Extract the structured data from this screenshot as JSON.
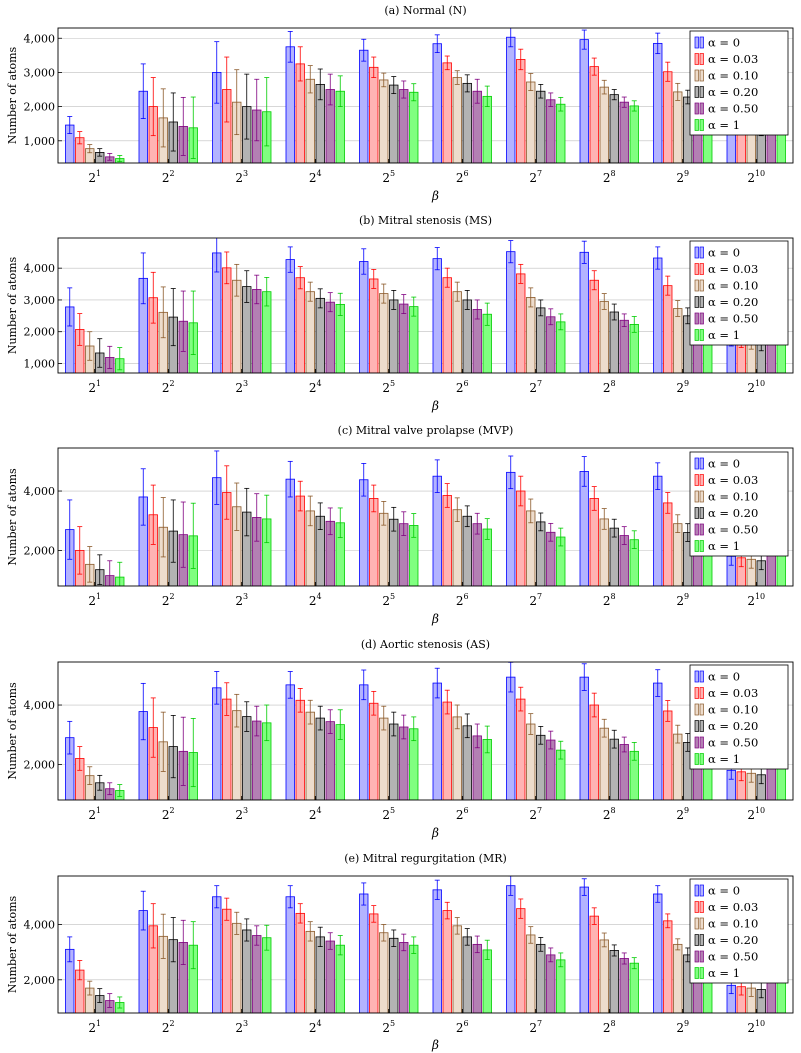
{
  "chart_data": [
    {
      "type": "bar",
      "title": "(a) Normal (N)",
      "xlabel": "β",
      "ylabel": "Number of atoms",
      "categories": [
        "2^1",
        "2^2",
        "2^3",
        "2^4",
        "2^5",
        "2^6",
        "2^7",
        "2^8",
        "2^9",
        "2^10"
      ],
      "ylim": [
        350,
        4300
      ],
      "yticks": [
        1000,
        2000,
        3000,
        4000
      ],
      "ytick_labels": [
        "1,000",
        "2,000",
        "3,000",
        "4,000"
      ],
      "grid": "horizontal",
      "legend_position": "top-right",
      "series": [
        {
          "name": "α = 0",
          "values": [
            1460,
            2450,
            3000,
            3750,
            3650,
            3840,
            4030,
            3960,
            3850,
            1550
          ],
          "errors": [
            250,
            800,
            900,
            450,
            320,
            260,
            280,
            280,
            300,
            250
          ]
        },
        {
          "name": "α = 0.03",
          "values": [
            1090,
            2000,
            2500,
            3250,
            3150,
            3280,
            3380,
            3170,
            3020,
            1500
          ],
          "errors": [
            180,
            850,
            950,
            500,
            300,
            200,
            300,
            250,
            280,
            250
          ]
        },
        {
          "name": "α = 0.10",
          "values": [
            770,
            1670,
            2130,
            2800,
            2780,
            2850,
            2720,
            2570,
            2430,
            1450
          ],
          "errors": [
            120,
            850,
            950,
            400,
            200,
            200,
            250,
            200,
            250,
            250
          ]
        },
        {
          "name": "α = 0.20",
          "values": [
            660,
            1550,
            2000,
            2650,
            2630,
            2680,
            2450,
            2350,
            2280,
            1400
          ],
          "errors": [
            110,
            850,
            950,
            450,
            250,
            250,
            200,
            150,
            200,
            250
          ]
        },
        {
          "name": "α = 0.50",
          "values": [
            530,
            1420,
            1900,
            2500,
            2500,
            2450,
            2200,
            2130,
            2130,
            1880
          ],
          "errors": [
            100,
            850,
            900,
            450,
            250,
            350,
            200,
            150,
            200,
            200
          ]
        },
        {
          "name": "α = 1",
          "values": [
            480,
            1380,
            1850,
            2450,
            2420,
            2300,
            2070,
            2020,
            2050,
            1820
          ],
          "errors": [
            90,
            900,
            1000,
            450,
            250,
            300,
            200,
            150,
            200,
            200
          ]
        }
      ]
    },
    {
      "type": "bar",
      "title": "(b) Mitral stenosis (MS)",
      "xlabel": "β",
      "ylabel": "Number of atoms",
      "categories": [
        "2^1",
        "2^2",
        "2^3",
        "2^4",
        "2^5",
        "2^6",
        "2^7",
        "2^8",
        "2^9",
        "2^10"
      ],
      "ylim": [
        700,
        4950
      ],
      "yticks": [
        1000,
        2000,
        3000,
        4000
      ],
      "ytick_labels": [
        "1,000",
        "2,000",
        "3,000",
        "4,000"
      ],
      "grid": "horizontal",
      "legend_position": "top-right",
      "series": [
        {
          "name": "α = 0",
          "values": [
            2780,
            3680,
            4480,
            4270,
            4210,
            4300,
            4520,
            4500,
            4320,
            1800
          ],
          "errors": [
            600,
            800,
            600,
            400,
            400,
            350,
            350,
            350,
            350,
            250
          ]
        },
        {
          "name": "α = 0.03",
          "values": [
            2070,
            3070,
            4010,
            3700,
            3660,
            3700,
            3820,
            3620,
            3450,
            1750
          ],
          "errors": [
            500,
            800,
            500,
            350,
            300,
            300,
            300,
            300,
            300,
            250
          ]
        },
        {
          "name": "α = 0.10",
          "values": [
            1550,
            2610,
            3620,
            3260,
            3200,
            3260,
            3080,
            2950,
            2730,
            1700
          ],
          "errors": [
            450,
            800,
            500,
            300,
            300,
            300,
            300,
            250,
            250,
            250
          ]
        },
        {
          "name": "α = 0.20",
          "values": [
            1330,
            2460,
            3420,
            3050,
            3000,
            3000,
            2750,
            2620,
            2500,
            1650
          ],
          "errors": [
            450,
            900,
            500,
            300,
            300,
            300,
            250,
            250,
            250,
            250
          ]
        },
        {
          "name": "α = 0.50",
          "values": [
            1190,
            2330,
            3330,
            2930,
            2870,
            2700,
            2470,
            2360,
            2250,
            2000
          ],
          "errors": [
            350,
            950,
            450,
            300,
            300,
            300,
            250,
            200,
            250,
            200
          ]
        },
        {
          "name": "α = 1",
          "values": [
            1150,
            2280,
            3260,
            2860,
            2790,
            2550,
            2310,
            2230,
            2150,
            1930
          ],
          "errors": [
            350,
            1000,
            450,
            350,
            300,
            350,
            250,
            250,
            250,
            200
          ]
        }
      ]
    },
    {
      "type": "bar",
      "title": "(c) Mitral valve prolapse (MVP)",
      "xlabel": "β",
      "ylabel": "Number of atoms",
      "categories": [
        "2^1",
        "2^2",
        "2^3",
        "2^4",
        "2^5",
        "2^6",
        "2^7",
        "2^8",
        "2^9",
        "2^10"
      ],
      "ylim": [
        800,
        5450
      ],
      "yticks": [
        2000,
        4000
      ],
      "ytick_labels": [
        "2,000",
        "4,000"
      ],
      "grid": "horizontal",
      "legend_position": "top-right",
      "series": [
        {
          "name": "α = 0",
          "values": [
            2700,
            3800,
            4450,
            4400,
            4380,
            4500,
            4630,
            4660,
            4500,
            1800
          ],
          "errors": [
            1000,
            950,
            900,
            600,
            550,
            550,
            550,
            500,
            450,
            300
          ]
        },
        {
          "name": "α = 0.03",
          "values": [
            2000,
            3200,
            3950,
            3830,
            3750,
            3850,
            4000,
            3750,
            3600,
            1750
          ],
          "errors": [
            800,
            1000,
            900,
            500,
            450,
            400,
            500,
            400,
            350,
            300
          ]
        },
        {
          "name": "α = 0.10",
          "values": [
            1530,
            2780,
            3470,
            3330,
            3250,
            3370,
            3330,
            3060,
            2900,
            1700
          ],
          "errors": [
            600,
            1000,
            800,
            500,
            400,
            400,
            400,
            350,
            300,
            300
          ]
        },
        {
          "name": "α = 0.20",
          "values": [
            1350,
            2650,
            3290,
            3150,
            3050,
            3150,
            2960,
            2750,
            2600,
            1650
          ],
          "errors": [
            500,
            1050,
            800,
            450,
            400,
            350,
            300,
            300,
            300,
            300
          ]
        },
        {
          "name": "α = 0.50",
          "values": [
            1150,
            2530,
            3110,
            2980,
            2900,
            2900,
            2610,
            2500,
            2400,
            2170
          ],
          "errors": [
            500,
            1100,
            800,
            450,
            400,
            350,
            300,
            300,
            300,
            200
          ]
        },
        {
          "name": "α = 1",
          "values": [
            1100,
            2490,
            3060,
            2930,
            2840,
            2720,
            2450,
            2360,
            2300,
            2080
          ],
          "errors": [
            500,
            1100,
            800,
            500,
            400,
            350,
            300,
            300,
            300,
            200
          ]
        }
      ]
    },
    {
      "type": "bar",
      "title": "(d) Aortic stenosis (AS)",
      "xlabel": "β",
      "ylabel": "Number of atoms",
      "categories": [
        "2^1",
        "2^2",
        "2^3",
        "2^4",
        "2^5",
        "2^6",
        "2^7",
        "2^8",
        "2^9",
        "2^10"
      ],
      "ylim": [
        800,
        5450
      ],
      "yticks": [
        2000,
        4000
      ],
      "ytick_labels": [
        "2,000",
        "4,000"
      ],
      "grid": "horizontal",
      "legend_position": "top-right",
      "series": [
        {
          "name": "α = 0",
          "values": [
            2900,
            3780,
            4580,
            4680,
            4680,
            4740,
            4940,
            4940,
            4740,
            1800
          ],
          "errors": [
            550,
            950,
            550,
            450,
            500,
            500,
            500,
            450,
            450,
            300
          ]
        },
        {
          "name": "α = 0.03",
          "values": [
            2200,
            3240,
            4200,
            4160,
            4060,
            4100,
            4200,
            4000,
            3800,
            1750
          ],
          "errors": [
            400,
            1000,
            550,
            400,
            400,
            400,
            400,
            400,
            350,
            300
          ]
        },
        {
          "name": "α = 0.10",
          "values": [
            1620,
            2760,
            3810,
            3760,
            3560,
            3600,
            3360,
            3220,
            3020,
            1700
          ],
          "errors": [
            300,
            1000,
            550,
            400,
            400,
            400,
            350,
            300,
            300,
            300
          ]
        },
        {
          "name": "α = 0.20",
          "values": [
            1380,
            2600,
            3610,
            3560,
            3360,
            3300,
            2980,
            2850,
            2740,
            1650
          ],
          "errors": [
            250,
            1050,
            500,
            400,
            400,
            400,
            300,
            300,
            300,
            300
          ]
        },
        {
          "name": "α = 0.50",
          "values": [
            1180,
            2440,
            3460,
            3440,
            3260,
            2960,
            2820,
            2670,
            2540,
            2240
          ],
          "errors": [
            200,
            1150,
            500,
            400,
            400,
            400,
            300,
            250,
            300,
            200
          ]
        },
        {
          "name": "α = 1",
          "values": [
            1120,
            2400,
            3400,
            3340,
            3200,
            2840,
            2480,
            2440,
            2400,
            2140
          ],
          "errors": [
            200,
            1150,
            600,
            500,
            400,
            450,
            300,
            300,
            300,
            200
          ]
        }
      ]
    },
    {
      "type": "bar",
      "title": "(e) Mitral regurgitation (MR)",
      "xlabel": "β",
      "ylabel": "Number of atoms",
      "categories": [
        "2^1",
        "2^2",
        "2^3",
        "2^4",
        "2^5",
        "2^6",
        "2^7",
        "2^8",
        "2^9",
        "2^10"
      ],
      "ylim": [
        800,
        5750
      ],
      "yticks": [
        2000,
        4000
      ],
      "ytick_labels": [
        "2,000",
        "4,000"
      ],
      "grid": "horizontal",
      "legend_position": "top-right",
      "series": [
        {
          "name": "α = 0",
          "values": [
            3100,
            4500,
            5000,
            5000,
            5100,
            5250,
            5400,
            5350,
            5100,
            1800
          ],
          "errors": [
            450,
            700,
            400,
            400,
            400,
            350,
            350,
            300,
            300,
            300
          ]
        },
        {
          "name": "α = 0.03",
          "values": [
            2350,
            3950,
            4550,
            4400,
            4380,
            4500,
            4570,
            4300,
            4130,
            1750
          ],
          "errors": [
            350,
            800,
            400,
            350,
            300,
            300,
            350,
            300,
            250,
            300
          ]
        },
        {
          "name": "α = 0.10",
          "values": [
            1700,
            3570,
            4040,
            3750,
            3700,
            3950,
            3620,
            3440,
            3280,
            1700
          ],
          "errors": [
            250,
            800,
            400,
            350,
            300,
            300,
            300,
            250,
            200,
            300
          ]
        },
        {
          "name": "α = 0.20",
          "values": [
            1430,
            3450,
            3800,
            3550,
            3500,
            3550,
            3280,
            3060,
            2900,
            1650
          ],
          "errors": [
            250,
            800,
            400,
            350,
            300,
            300,
            250,
            200,
            250,
            300
          ]
        },
        {
          "name": "α = 0.50",
          "values": [
            1250,
            3350,
            3600,
            3400,
            3350,
            3280,
            2900,
            2770,
            2670,
            2350
          ],
          "errors": [
            250,
            800,
            350,
            300,
            300,
            300,
            250,
            200,
            200,
            200
          ]
        },
        {
          "name": "α = 1",
          "values": [
            1180,
            3250,
            3520,
            3250,
            3250,
            3080,
            2720,
            2600,
            2570,
            2280
          ],
          "errors": [
            200,
            850,
            450,
            350,
            300,
            350,
            250,
            200,
            200,
            200
          ]
        }
      ]
    }
  ],
  "colors": {
    "series_fill": [
      "#b3b3ff",
      "#ffb3b3",
      "#eddccc",
      "#b3b3b3",
      "#b380b3",
      "#80ff80"
    ],
    "series_stroke": [
      "#0000ff",
      "#ff0000",
      "#8b5a2b",
      "#000000",
      "#800080",
      "#00cc00"
    ],
    "grid": "#bfbfbf",
    "axis": "#000000"
  }
}
